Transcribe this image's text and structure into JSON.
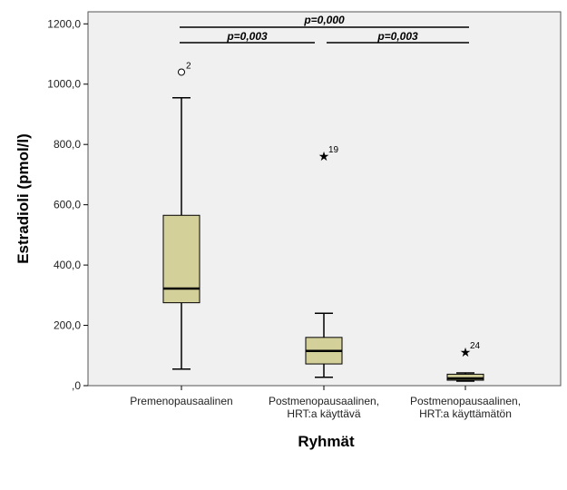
{
  "chart_data": {
    "type": "boxplot",
    "xlabel": "Ryhmät",
    "ylabel": "Estradioli (pmol/l)",
    "ylim": [
      0,
      1240
    ],
    "yticks": [
      0,
      200,
      400,
      600,
      800,
      1000,
      1200
    ],
    "ytick_labels": [
      ",0",
      "200,0",
      "400,0",
      "600,0",
      "800,0",
      "1000,0",
      "1200,0"
    ],
    "grid": false,
    "box_color": "#d4d09a",
    "plot_background": "#f0f0f0",
    "groups": [
      {
        "label": [
          "Premenopausaalinen"
        ],
        "whisker_low": 55,
        "q1": 275,
        "median": 322,
        "q3": 565,
        "whisker_high": 955,
        "outliers": [
          {
            "value": 1040,
            "marker": "circle",
            "label": "2"
          }
        ]
      },
      {
        "label": [
          "Postmenopausaalinen,",
          "HRT:a käyttävä"
        ],
        "whisker_low": 28,
        "q1": 72,
        "median": 115,
        "q3": 160,
        "whisker_high": 240,
        "outliers": [
          {
            "value": 762,
            "marker": "star",
            "label": "19"
          }
        ]
      },
      {
        "label": [
          "Postmenopausaalinen,",
          "HRT:a käyttämätön"
        ],
        "whisker_low": 15,
        "q1": 18,
        "median": 24,
        "q3": 38,
        "whisker_high": 42,
        "outliers": [
          {
            "value": 112,
            "marker": "star",
            "label": "24"
          }
        ]
      }
    ],
    "annotations": [
      {
        "from": 0,
        "to": 2,
        "text": "p=0,000"
      },
      {
        "from": 0,
        "to": 1,
        "text": "p=0,003"
      },
      {
        "from": 1,
        "to": 2,
        "text": "p=0,003"
      }
    ]
  }
}
